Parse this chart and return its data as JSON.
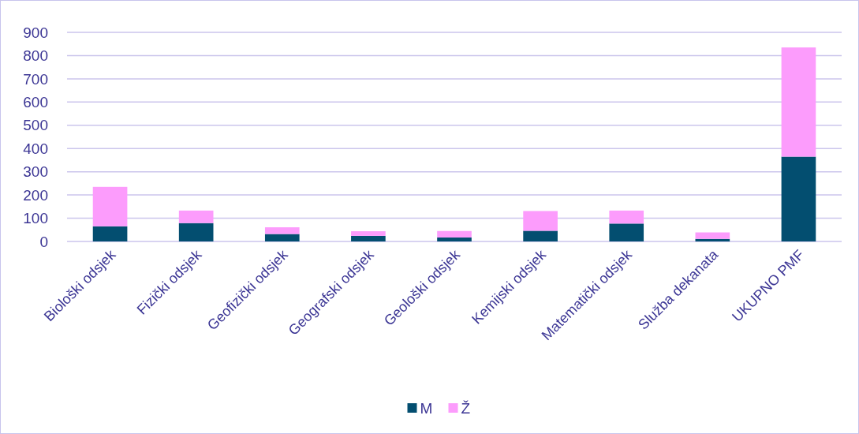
{
  "chart_data": {
    "type": "bar",
    "stacked": true,
    "categories": [
      "Biološki odsjek",
      "Fizički odsjek",
      "Geofizički odsjek",
      "Geografski odsjek",
      "Geološki odsjek",
      "Kemijski odsjek",
      "Matematički odsjek",
      "Služba dekanata",
      "UKUPNO PMF"
    ],
    "series": [
      {
        "name": "M",
        "color": "#034e70",
        "values": [
          65,
          79,
          32,
          24,
          17,
          46,
          77,
          11,
          365
        ]
      },
      {
        "name": "Ž",
        "color": "#fc9cfc",
        "values": [
          170,
          54,
          29,
          20,
          28,
          85,
          56,
          28,
          470
        ]
      }
    ],
    "ylim": [
      0,
      900
    ],
    "yticks": [
      0,
      100,
      200,
      300,
      400,
      500,
      600,
      700,
      800,
      900
    ],
    "grid": "y",
    "legend": "bottom"
  }
}
